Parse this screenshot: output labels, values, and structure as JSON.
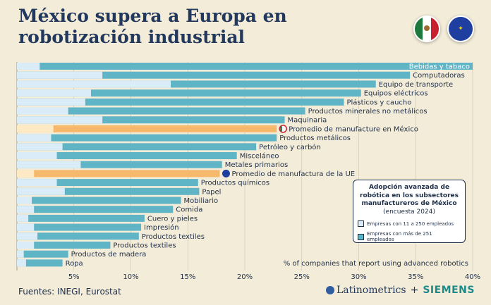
{
  "title": "México supera a Europa en robotización industrial",
  "footer": {
    "source": "Fuentes: INEGI, Eurostat",
    "logo_left": "Latinometrics",
    "logo_plus": "+",
    "logo_right": "SIEMENS"
  },
  "legend": {
    "title": "Adopción avanzada de robótica en los subsectores manufactureros de México",
    "subtitle": "(encuesta 2024)",
    "items": [
      {
        "label": "Empresas con 11 a 250 empleados",
        "color": "#d9ecf7"
      },
      {
        "label": "Empresas con más de 251 empleados",
        "color": "#5fb4c5"
      }
    ]
  },
  "icons": [
    "mexico-flag-icon",
    "eu-flag-icon"
  ],
  "colors": {
    "background": "#f3ecd8",
    "small": "#d9ecf7",
    "large": "#5fb4c5",
    "avg_small": "#fde9c4",
    "avg_large": "#f6b96b",
    "text": "#1f2f4a"
  },
  "chart_data": {
    "type": "bar",
    "orientation": "horizontal",
    "xlabel": "% of companies that report using advanced robotics",
    "xlim": [
      0,
      40
    ],
    "xticks": [
      "5%",
      "10%",
      "15%",
      "20%",
      "25%",
      "30%",
      "35%",
      "40%"
    ],
    "grid": true,
    "categories": [
      "Bebidas y tabaco",
      "Computadoras",
      "Equipo de transporte",
      "Equipos eléctricos",
      "Plásticos y caucho",
      "Productos minerales no metálicos",
      "Maquinaria",
      "Promedio de manufacture en México",
      "Productos metálicos",
      "Petróleo y carbón",
      "Misceláneo",
      "Metales primarios",
      "Promedio de manufactura de la UE",
      "Productos químicos",
      "Papel",
      "Mobiliario",
      "Comida",
      "Cuero y pieles",
      "Impresión",
      "Productos textiles",
      "Productos textiles",
      "Productos de madera",
      "Ropa"
    ],
    "highlight": [
      "Promedio de manufacture en México",
      "Promedio de manufactura de la UE"
    ],
    "series": [
      {
        "name": "Empresas con 11 a 250 empleados",
        "values": [
          2,
          7.5,
          13.5,
          6.5,
          6,
          4.5,
          7.5,
          3.2,
          3,
          4,
          3.5,
          5.6,
          1.5,
          3.5,
          4.2,
          1.3,
          1.5,
          1,
          1.5,
          1.8,
          1.5,
          0.6,
          0.8
        ]
      },
      {
        "name": "Empresas con más de 251 empleados",
        "values": [
          40,
          34.5,
          31.5,
          30.2,
          28.7,
          25.3,
          23.5,
          22.8,
          22.8,
          21,
          19.3,
          18,
          17.8,
          15.9,
          16,
          14.4,
          13.7,
          11.2,
          10.9,
          10.7,
          8.2,
          4.5,
          4
        ]
      }
    ]
  }
}
